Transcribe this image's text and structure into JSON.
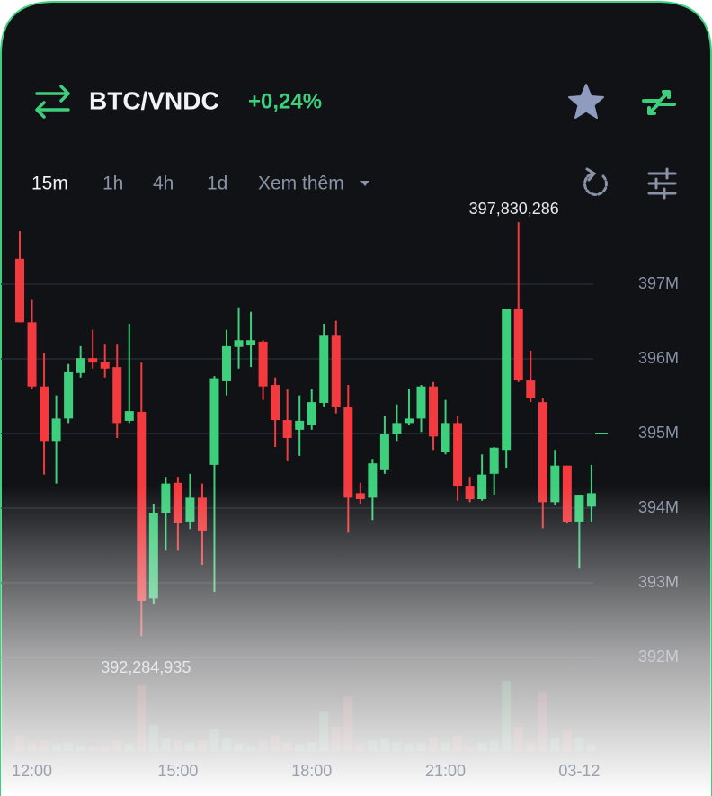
{
  "header": {
    "pair": "BTC/VNDC",
    "change": "+0,24%"
  },
  "timeframes": [
    "15m",
    "1h",
    "4h",
    "1d",
    "Xem thêm"
  ],
  "chart_data": {
    "type": "candlestick",
    "categories": [
      null,
      "12:00",
      null,
      null,
      null,
      null,
      null,
      null,
      null,
      null,
      null,
      null,
      null,
      "15:00",
      null,
      null,
      null,
      null,
      null,
      null,
      null,
      null,
      null,
      null,
      "18:00",
      null,
      null,
      null,
      null,
      null,
      null,
      null,
      null,
      null,
      null,
      "21:00",
      null,
      null,
      null,
      null,
      null,
      null,
      null,
      null,
      null,
      null,
      "03-12",
      null
    ],
    "open": [
      397.34,
      396.49,
      395.63,
      394.9,
      395.2,
      395.81,
      396.01,
      395.96,
      395.89,
      395.17,
      395.29,
      392.79,
      393.94,
      394.34,
      393.82,
      394.14,
      394.58,
      395.7,
      396.16,
      396.18,
      396.23,
      395.65,
      395.18,
      395.05,
      395.12,
      395.41,
      396.31,
      395.35,
      394.2,
      394.14,
      394.52,
      394.99,
      395.14,
      395.2,
      395.63,
      394.75,
      395.14,
      394.3,
      394.12,
      394.46,
      394.78,
      396.67,
      395.71,
      395.42,
      394.08,
      394.57,
      393.82,
      394.02
    ],
    "high": [
      397.71,
      396.8,
      396.08,
      395.51,
      395.93,
      396.17,
      396.39,
      396.19,
      396.19,
      396.47,
      395.95,
      394.06,
      394.42,
      394.42,
      394.46,
      394.33,
      395.77,
      396.39,
      396.69,
      396.63,
      396.25,
      395.75,
      395.6,
      395.51,
      395.59,
      396.47,
      396.51,
      395.65,
      394.34,
      394.66,
      395.24,
      395.39,
      395.6,
      395.65,
      395.69,
      395.45,
      395.23,
      394.42,
      394.72,
      394.82,
      396.67,
      397.830286,
      396.11,
      395.47,
      394.78,
      394.57,
      394.18,
      394.58
    ],
    "low": [
      396.49,
      395.6,
      394.45,
      394.33,
      395.14,
      395.75,
      395.87,
      395.75,
      394.94,
      395.14,
      392.284935,
      392.71,
      393.43,
      393.43,
      393.72,
      393.24,
      392.88,
      395.51,
      395.87,
      395.89,
      395.45,
      394.82,
      394.64,
      394.7,
      395.05,
      395.36,
      395.27,
      393.67,
      394.06,
      393.84,
      394.46,
      394.9,
      395.12,
      395.02,
      394.78,
      394.72,
      394.1,
      394.08,
      394.1,
      394.18,
      394.54,
      395.69,
      395.42,
      393.73,
      394.04,
      393.8,
      393.19,
      393.82
    ],
    "close": [
      396.49,
      395.63,
      394.9,
      395.2,
      395.82,
      396.01,
      395.95,
      395.87,
      395.14,
      395.3,
      392.76,
      393.94,
      394.33,
      393.8,
      394.14,
      393.7,
      395.74,
      396.17,
      396.25,
      396.25,
      395.63,
      395.18,
      394.94,
      395.17,
      395.42,
      396.31,
      395.35,
      394.14,
      394.12,
      394.6,
      394.99,
      395.14,
      395.2,
      395.63,
      394.96,
      395.14,
      394.3,
      394.12,
      394.45,
      394.81,
      396.67,
      395.71,
      395.47,
      394.08,
      394.57,
      393.82,
      394.18,
      394.2
    ],
    "volume": [
      18,
      10,
      12,
      8,
      10,
      6,
      5,
      6,
      12,
      8,
      75,
      30,
      14,
      12,
      10,
      12,
      25,
      14,
      8,
      6,
      12,
      18,
      10,
      8,
      10,
      45,
      28,
      62,
      8,
      12,
      14,
      10,
      8,
      10,
      16,
      10,
      18,
      6,
      10,
      12,
      80,
      28,
      10,
      68,
      14,
      24,
      16,
      8
    ],
    "up_color": "#3ecf7c",
    "down_color": "#f23a3f",
    "ylim": [
      391.8,
      397.9
    ],
    "yticks": [
      {
        "value": 392,
        "label": "392M"
      },
      {
        "value": 393,
        "label": "393M"
      },
      {
        "value": 394,
        "label": "394M"
      },
      {
        "value": 395,
        "label": "395M"
      },
      {
        "value": 396,
        "label": "396M"
      },
      {
        "value": 397,
        "label": "397M"
      }
    ],
    "grid": true,
    "annotations": [
      {
        "value": 397.830286,
        "label": "397,830,286"
      },
      {
        "value": 392.284935,
        "label": "392,284,935"
      }
    ]
  }
}
